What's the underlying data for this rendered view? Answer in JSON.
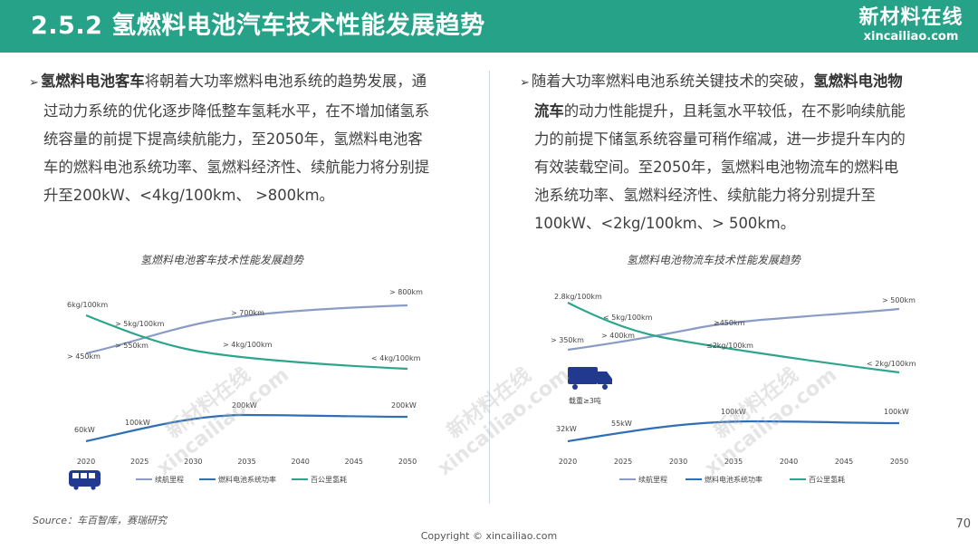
{
  "header": {
    "title": "2.5.2  氢燃料电池汽车技术性能发展趋势",
    "logo_cn": "新材料在线",
    "logo_en": "xincailiao.com"
  },
  "left_text": {
    "bold_lead": "氢燃料电池客车",
    "rest_line1": "将朝着大功率燃料电池系统的趋势发展，通",
    "lines": [
      "过动力系统的优化逐步降低整车氢耗水平，在不增加储氢系",
      "统容量的前提下提高续航能力，至2050年，氢燃料电池客",
      "车的燃料电池系统功率、氢燃料经济性、续航能力将分别提",
      "升至200kW、<4kg/100km、 >800km。"
    ]
  },
  "right_text": {
    "lead": "随着大功率燃料电池系统关键技术的突破，",
    "bold1": "氢燃料电池物",
    "bold2": "流车",
    "line2_rest": "的动力性能提升，且耗氢水平较低，在不影响续航能",
    "lines": [
      "力的前提下储氢系统容量可稍作缩减，进一步提升车内的",
      "有效装载空间。至2050年，氢燃料电池物流车的燃料电",
      "池系统功率、氢燃料经济性、续航能力将分别提升至",
      "100kW、<2kg/100km、> 500km。"
    ]
  },
  "chart_data": [
    {
      "type": "line",
      "title": "氢燃料电池客车技术性能发展趋势",
      "x": [
        "2020",
        "2025",
        "2030",
        "2035",
        "2040",
        "2045",
        "2050"
      ],
      "series": [
        {
          "name": "续航里程",
          "color": "#8a9cc6",
          "label_values": [
            "> 450km",
            "> 550km",
            "> 700km",
            "> 800km"
          ]
        },
        {
          "name": "燃料电池系统功率",
          "color": "#2f6fb5",
          "label_values": [
            "60kW",
            "100kW",
            "200kW",
            "200kW"
          ]
        },
        {
          "name": "百公里氢耗",
          "color": "#2ca58d",
          "label_values": [
            "6kg/100km",
            "> 5kg/100km",
            "> 4kg/100km",
            "< 4kg/100km"
          ]
        }
      ],
      "icon": "bus-icon"
    },
    {
      "type": "line",
      "title": "氢燃料电池物流车技术性能发展趋势",
      "x": [
        "2020",
        "2025",
        "2030",
        "2035",
        "2040",
        "2045",
        "2050"
      ],
      "series": [
        {
          "name": "续航里程",
          "color": "#8a9cc6",
          "label_values": [
            "> 350km",
            "> 400km",
            "≥450km",
            "> 500km"
          ]
        },
        {
          "name": "燃料电池系统功率",
          "color": "#2f6fb5",
          "label_values": [
            "32kW",
            "55kW",
            "100kW",
            "100kW"
          ]
        },
        {
          "name": "百公里氢耗",
          "color": "#2ca58d",
          "label_values": [
            "2.8kg/100km",
            "< 5kg/100km",
            "≤2kg/100km",
            "< 2kg/100km"
          ]
        }
      ],
      "icon": "truck-icon",
      "icon_caption": "载重≥3吨"
    }
  ],
  "footer": {
    "source": "Source：车百智库，赛瑞研究",
    "copyright": "Copyright © xincailiao.com",
    "page": "70"
  }
}
